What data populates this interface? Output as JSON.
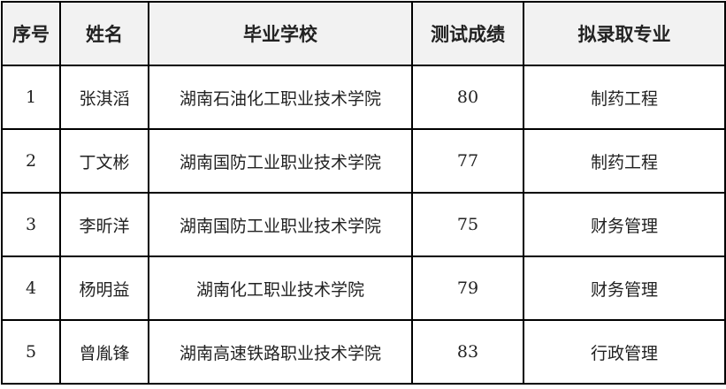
{
  "table": {
    "headers": [
      "序号",
      "姓名",
      "毕业学校",
      "测试成绩",
      "拟录取专业"
    ],
    "rows": [
      [
        "1",
        "张淇滔",
        "湖南石油化工职业技术学院",
        "80",
        "制药工程"
      ],
      [
        "2",
        "丁文彬",
        "湖南国防工业职业技术学院",
        "77",
        "制药工程"
      ],
      [
        "3",
        "李昕洋",
        "湖南国防工业职业技术学院",
        "75",
        "财务管理"
      ],
      [
        "4",
        "杨明益",
        "湖南化工职业技术学院",
        "79",
        "财务管理"
      ],
      [
        "5",
        "曾胤锋",
        "湖南高速铁路职业技术学院",
        "83",
        "行政管理"
      ]
    ]
  }
}
